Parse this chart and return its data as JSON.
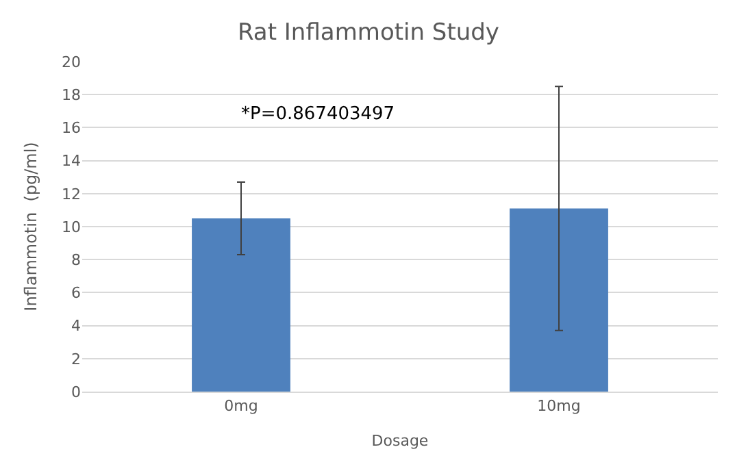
{
  "chart_data": {
    "type": "bar",
    "title": "Rat Inflammotin Study",
    "xlabel": "Dosage",
    "ylabel": "Inflammotin  (pg/ml)",
    "categories": [
      "0mg",
      "10mg"
    ],
    "values": [
      10.5,
      11.1
    ],
    "errors": [
      2.2,
      7.4
    ],
    "color": "#4f81bd",
    "ylim": [
      0,
      20
    ],
    "yticks": [
      0,
      2,
      4,
      6,
      8,
      10,
      12,
      14,
      16,
      18,
      20
    ],
    "grid": "y",
    "legend": false,
    "annotations": [
      "*P=0.867403497"
    ]
  }
}
